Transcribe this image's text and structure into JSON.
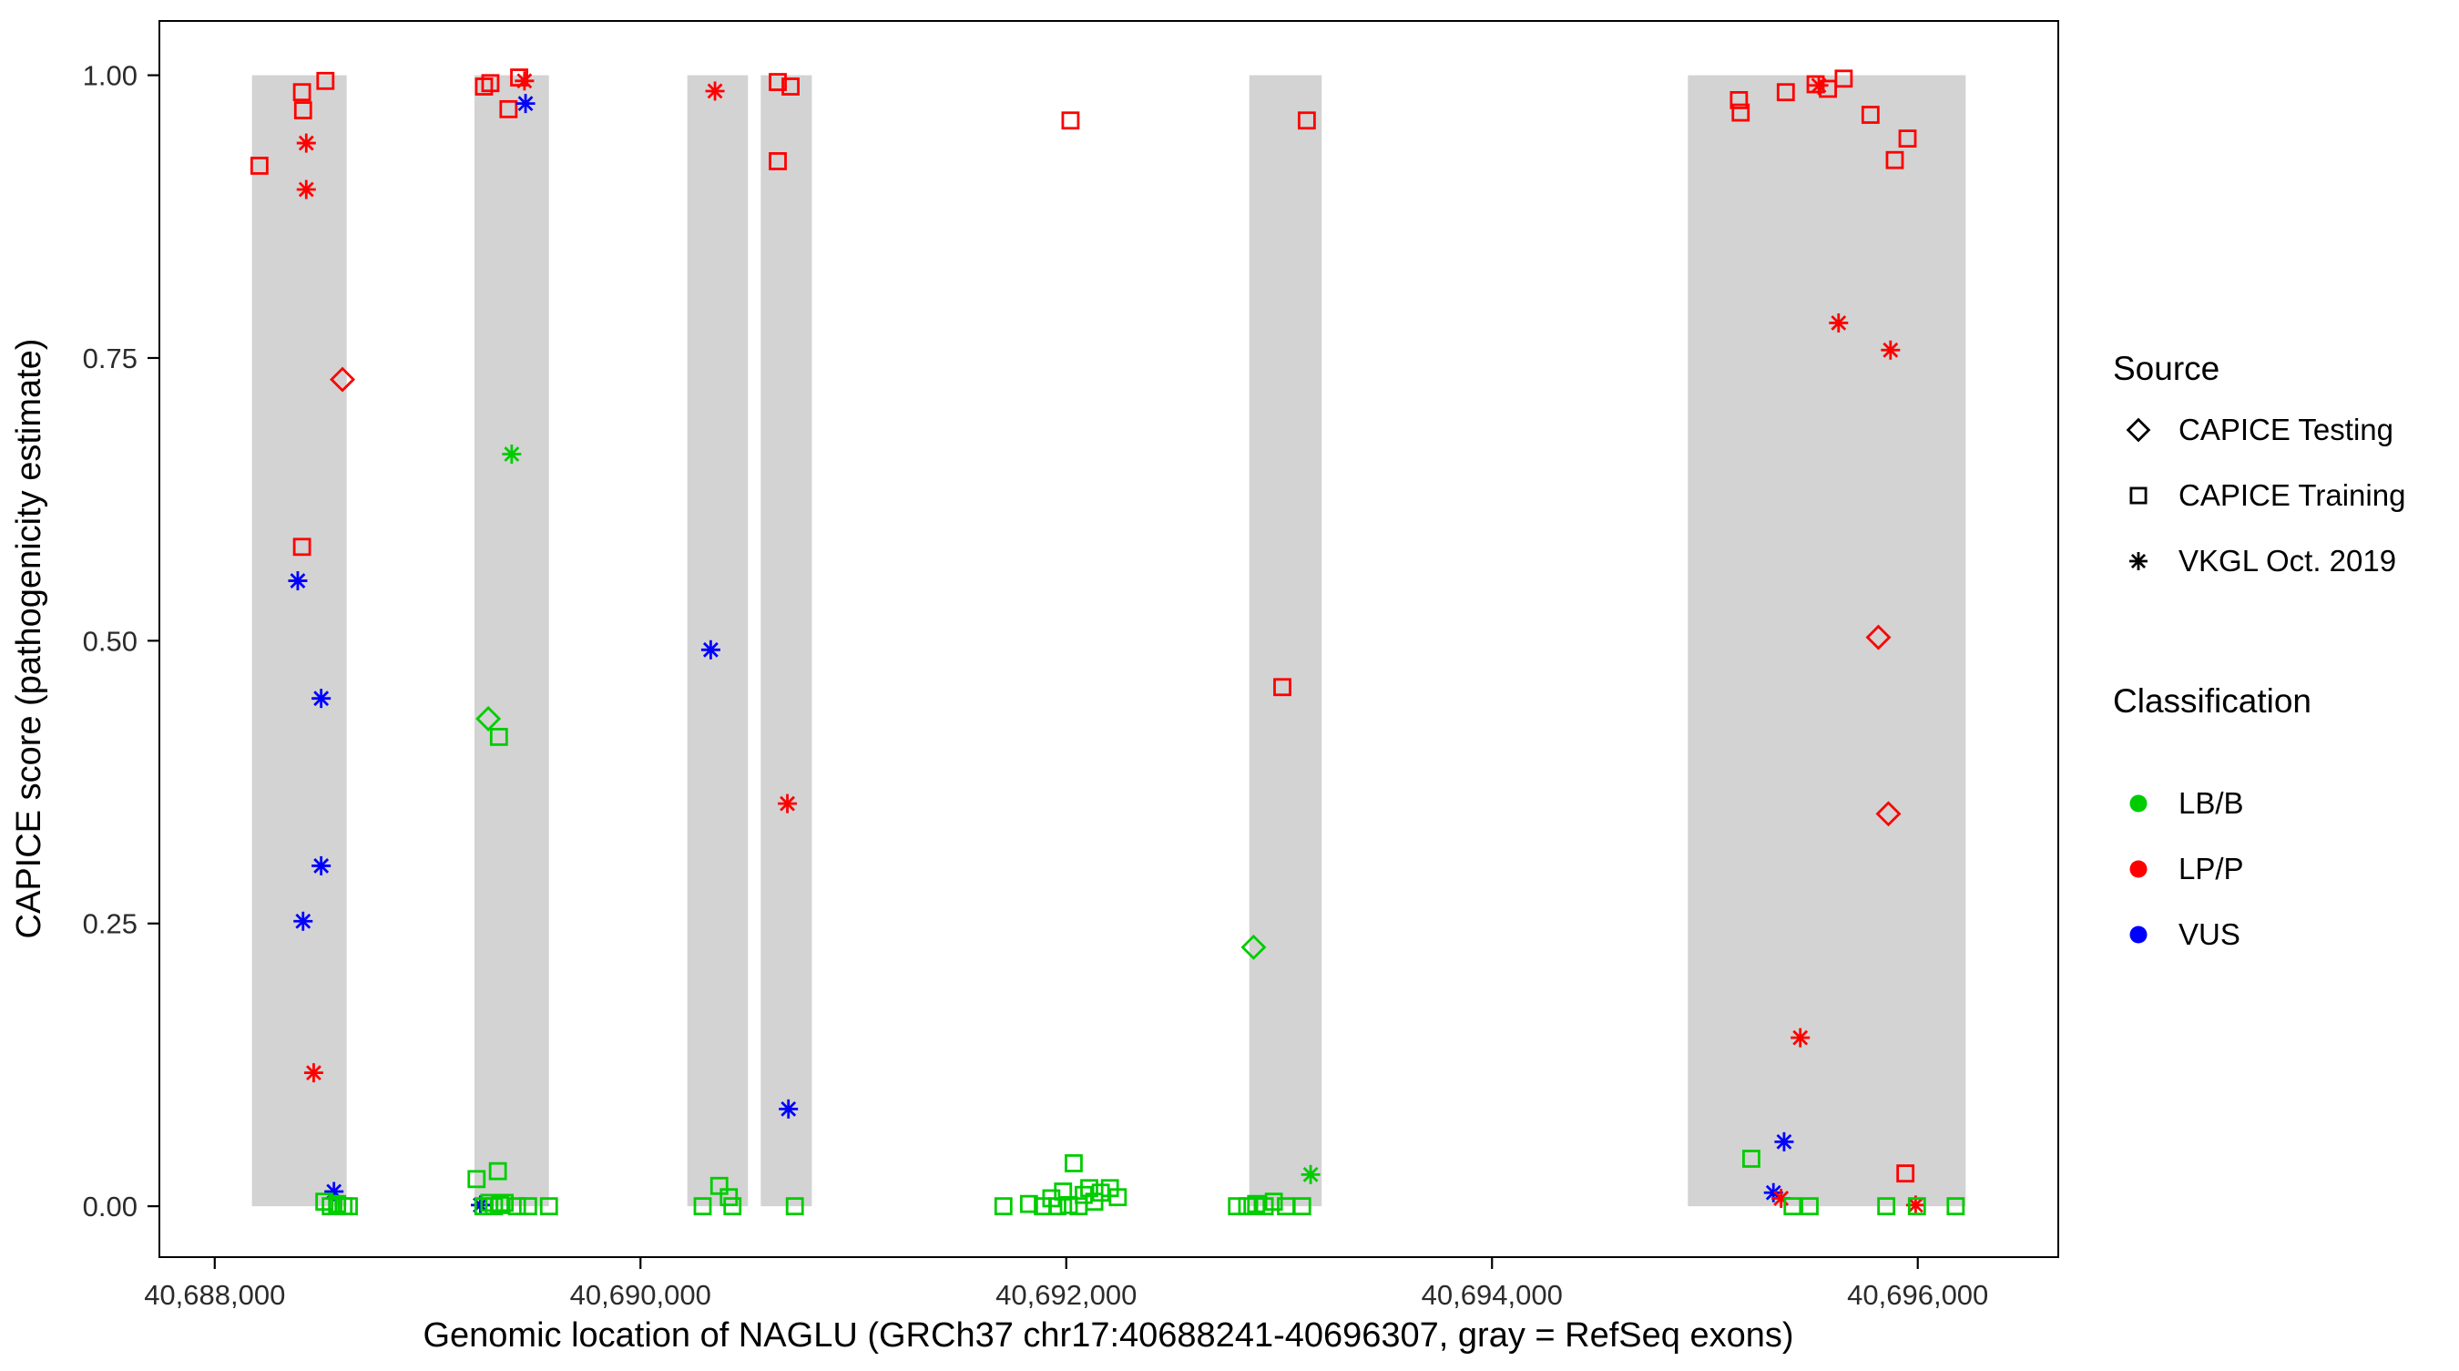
{
  "chart_data": {
    "type": "scatter",
    "title": "",
    "xlabel": "Genomic location of NAGLU (GRCh37 chr17:40688241-40696307, gray = RefSeq exons)",
    "ylabel": "CAPICE score (pathogenicity estimate)",
    "xlim": [
      40687740,
      40696660
    ],
    "ylim": [
      -0.045,
      1.048
    ],
    "grid": false,
    "panel_border": true,
    "x_ticks": [
      {
        "value": 40688000,
        "label": "40,688,000"
      },
      {
        "value": 40690000,
        "label": "40,690,000"
      },
      {
        "value": 40692000,
        "label": "40,692,000"
      },
      {
        "value": 40694000,
        "label": "40,694,000"
      },
      {
        "value": 40696000,
        "label": "40,696,000"
      }
    ],
    "y_ticks": [
      {
        "value": 0.0,
        "label": "0.00"
      },
      {
        "value": 0.25,
        "label": "0.25"
      },
      {
        "value": 0.5,
        "label": "0.50"
      },
      {
        "value": 0.75,
        "label": "0.75"
      },
      {
        "value": 1.0,
        "label": "1.00"
      }
    ],
    "exon_color": "#d3d3d3",
    "exons": [
      [
        40688175,
        40688620
      ],
      [
        40689220,
        40689570
      ],
      [
        40690220,
        40690505
      ],
      [
        40690565,
        40690805
      ],
      [
        40692860,
        40693200
      ],
      [
        40694920,
        40696225
      ]
    ],
    "class_colors": {
      "LB/B": "#00cc00",
      "LP/P": "#ff0000",
      "VUS": "#0000ff"
    },
    "source_shapes": {
      "CAPICE Testing": "diamond",
      "CAPICE Training": "square",
      "VKGL Oct. 2019": "asterisk"
    },
    "point_fields": [
      "x",
      "y",
      "source",
      "classification"
    ],
    "source_codes": {
      "te": "CAPICE Testing",
      "tr": "CAPICE Training",
      "vk": "VKGL Oct. 2019"
    },
    "class_codes": {
      "B": "LB/B",
      "P": "LP/P",
      "V": "VUS"
    },
    "points": [
      [
        40688210,
        0.92,
        "tr",
        "P"
      ],
      [
        40688410,
        0.985,
        "tr",
        "P"
      ],
      [
        40688415,
        0.969,
        "tr",
        "P"
      ],
      [
        40688520,
        0.995,
        "tr",
        "P"
      ],
      [
        40688430,
        0.94,
        "vk",
        "P"
      ],
      [
        40688430,
        0.899,
        "vk",
        "P"
      ],
      [
        40688600,
        0.731,
        "te",
        "P"
      ],
      [
        40688410,
        0.583,
        "tr",
        "P"
      ],
      [
        40688390,
        0.553,
        "vk",
        "V"
      ],
      [
        40688500,
        0.449,
        "vk",
        "V"
      ],
      [
        40688500,
        0.301,
        "vk",
        "V"
      ],
      [
        40688415,
        0.252,
        "vk",
        "V"
      ],
      [
        40688465,
        0.118,
        "vk",
        "P"
      ],
      [
        40688560,
        0.013,
        "vk",
        "V"
      ],
      [
        40688515,
        0.004,
        "tr",
        "B"
      ],
      [
        40688545,
        0.0,
        "tr",
        "B"
      ],
      [
        40688575,
        0.002,
        "tr",
        "B"
      ],
      [
        40688605,
        0.0,
        "tr",
        "B"
      ],
      [
        40688630,
        0.0,
        "tr",
        "B"
      ],
      [
        40689265,
        0.99,
        "tr",
        "P"
      ],
      [
        40689295,
        0.993,
        "tr",
        "P"
      ],
      [
        40689430,
        0.998,
        "tr",
        "P"
      ],
      [
        40689455,
        0.995,
        "vk",
        "P"
      ],
      [
        40689380,
        0.97,
        "tr",
        "P"
      ],
      [
        40689460,
        0.975,
        "vk",
        "V"
      ],
      [
        40689395,
        0.665,
        "vk",
        "B"
      ],
      [
        40689285,
        0.431,
        "te",
        "B"
      ],
      [
        40689335,
        0.415,
        "tr",
        "B"
      ],
      [
        40689230,
        0.024,
        "tr",
        "B"
      ],
      [
        40689330,
        0.031,
        "tr",
        "B"
      ],
      [
        40689248,
        0.001,
        "vk",
        "V"
      ],
      [
        40689262,
        0.0,
        "tr",
        "B"
      ],
      [
        40689290,
        0.003,
        "tr",
        "B"
      ],
      [
        40689312,
        0.0,
        "tr",
        "B"
      ],
      [
        40689340,
        0.001,
        "tr",
        "B"
      ],
      [
        40689362,
        0.003,
        "tr",
        "B"
      ],
      [
        40689420,
        0.0,
        "tr",
        "B"
      ],
      [
        40689472,
        0.0,
        "tr",
        "B"
      ],
      [
        40689570,
        0.0,
        "tr",
        "B"
      ],
      [
        40690350,
        0.986,
        "vk",
        "P"
      ],
      [
        40690330,
        0.492,
        "vk",
        "V"
      ],
      [
        40690370,
        0.018,
        "tr",
        "B"
      ],
      [
        40690415,
        0.008,
        "tr",
        "B"
      ],
      [
        40690292,
        0.0,
        "tr",
        "B"
      ],
      [
        40690432,
        0.0,
        "tr",
        "B"
      ],
      [
        40690645,
        0.994,
        "tr",
        "P"
      ],
      [
        40690705,
        0.99,
        "tr",
        "P"
      ],
      [
        40690645,
        0.924,
        "tr",
        "P"
      ],
      [
        40690690,
        0.356,
        "vk",
        "P"
      ],
      [
        40690695,
        0.086,
        "vk",
        "V"
      ],
      [
        40690725,
        0.0,
        "tr",
        "B"
      ],
      [
        40692020,
        0.96,
        "tr",
        "P"
      ],
      [
        40691705,
        0.0,
        "tr",
        "B"
      ],
      [
        40691825,
        0.002,
        "tr",
        "B"
      ],
      [
        40691890,
        0.0,
        "tr",
        "B"
      ],
      [
        40691930,
        0.007,
        "tr",
        "B"
      ],
      [
        40691958,
        0.0,
        "tr",
        "B"
      ],
      [
        40691985,
        0.013,
        "tr",
        "B"
      ],
      [
        40692012,
        0.001,
        "tr",
        "B"
      ],
      [
        40692035,
        0.038,
        "tr",
        "B"
      ],
      [
        40692058,
        0.0,
        "tr",
        "B"
      ],
      [
        40692082,
        0.01,
        "tr",
        "B"
      ],
      [
        40692108,
        0.016,
        "tr",
        "B"
      ],
      [
        40692132,
        0.004,
        "tr",
        "B"
      ],
      [
        40692162,
        0.012,
        "tr",
        "B"
      ],
      [
        40692205,
        0.016,
        "tr",
        "B"
      ],
      [
        40692242,
        0.008,
        "tr",
        "B"
      ],
      [
        40693130,
        0.96,
        "tr",
        "P"
      ],
      [
        40693015,
        0.459,
        "tr",
        "P"
      ],
      [
        40692880,
        0.229,
        "te",
        "B"
      ],
      [
        40693148,
        0.028,
        "vk",
        "B"
      ],
      [
        40692802,
        0.0,
        "tr",
        "B"
      ],
      [
        40692850,
        0.0,
        "tr",
        "B"
      ],
      [
        40692892,
        0.002,
        "tr",
        "B"
      ],
      [
        40692932,
        0.0,
        "tr",
        "B"
      ],
      [
        40692975,
        0.004,
        "tr",
        "B"
      ],
      [
        40693032,
        0.0,
        "tr",
        "B"
      ],
      [
        40693108,
        0.0,
        "tr",
        "B"
      ],
      [
        40695160,
        0.978,
        "tr",
        "P"
      ],
      [
        40695168,
        0.967,
        "tr",
        "P"
      ],
      [
        40695380,
        0.985,
        "tr",
        "P"
      ],
      [
        40695520,
        0.992,
        "tr",
        "P"
      ],
      [
        40695535,
        0.991,
        "vk",
        "P"
      ],
      [
        40695578,
        0.988,
        "tr",
        "P"
      ],
      [
        40695652,
        0.997,
        "tr",
        "P"
      ],
      [
        40695778,
        0.965,
        "tr",
        "P"
      ],
      [
        40695892,
        0.925,
        "tr",
        "P"
      ],
      [
        40695952,
        0.944,
        "tr",
        "P"
      ],
      [
        40695628,
        0.781,
        "vk",
        "P"
      ],
      [
        40695872,
        0.757,
        "vk",
        "P"
      ],
      [
        40695815,
        0.503,
        "te",
        "P"
      ],
      [
        40695862,
        0.347,
        "te",
        "P"
      ],
      [
        40695448,
        0.149,
        "vk",
        "P"
      ],
      [
        40695372,
        0.057,
        "vk",
        "V"
      ],
      [
        40695218,
        0.042,
        "tr",
        "B"
      ],
      [
        40695322,
        0.012,
        "vk",
        "V"
      ],
      [
        40695358,
        0.007,
        "vk",
        "P"
      ],
      [
        40695412,
        0.0,
        "tr",
        "B"
      ],
      [
        40695492,
        0.0,
        "tr",
        "B"
      ],
      [
        40695942,
        0.029,
        "tr",
        "P"
      ],
      [
        40695852,
        0.0,
        "tr",
        "B"
      ],
      [
        40695990,
        0.001,
        "vk",
        "P"
      ],
      [
        40695996,
        0.0,
        "tr",
        "B"
      ],
      [
        40696178,
        0.0,
        "tr",
        "B"
      ]
    ]
  },
  "legend": {
    "source_title": "Source",
    "source_items": [
      {
        "label": "CAPICE Testing",
        "shape": "diamond"
      },
      {
        "label": "CAPICE Training",
        "shape": "square"
      },
      {
        "label": "VKGL Oct. 2019",
        "shape": "asterisk"
      }
    ],
    "classification_title": "Classification",
    "classification_items": [
      {
        "label": "LB/B",
        "color": "#00cc00"
      },
      {
        "label": "LP/P",
        "color": "#ff0000"
      },
      {
        "label": "VUS",
        "color": "#0000ff"
      }
    ]
  }
}
